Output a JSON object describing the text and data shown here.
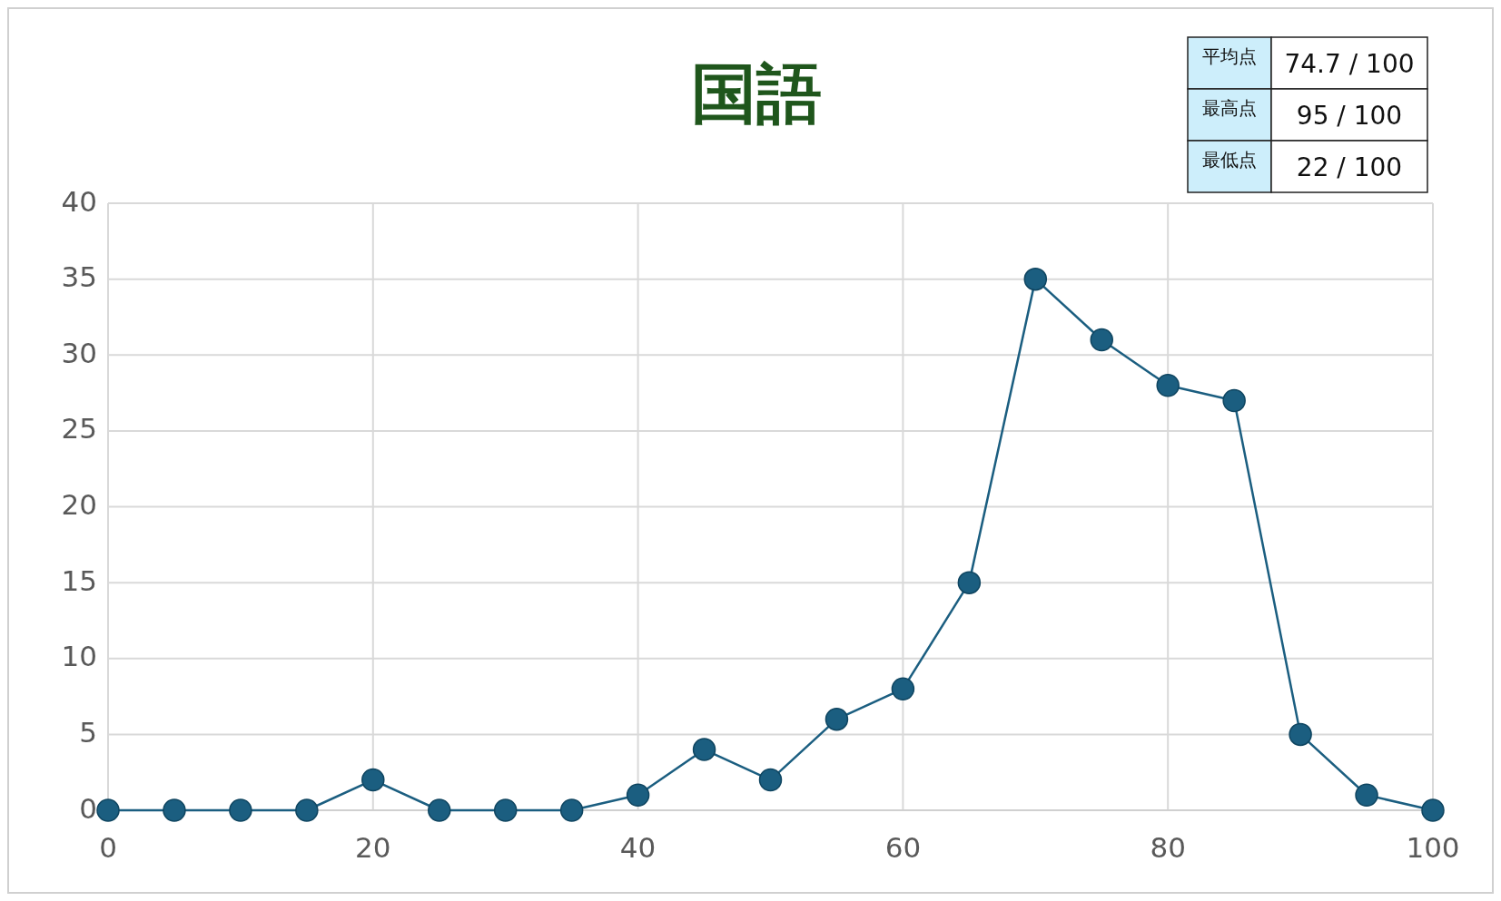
{
  "chart_data": {
    "type": "line",
    "title": "国語",
    "x": [
      0,
      5,
      10,
      15,
      20,
      25,
      30,
      35,
      40,
      45,
      50,
      55,
      60,
      65,
      70,
      75,
      80,
      85,
      90,
      95,
      100
    ],
    "series": [
      {
        "color": "#1b5e80",
        "values": [
          0,
          0,
          0,
          0,
          2,
          0,
          0,
          0,
          1,
          4,
          2,
          6,
          8,
          15,
          35,
          31,
          28,
          27,
          5,
          1,
          0
        ]
      }
    ],
    "xlim": [
      0,
      100
    ],
    "xticks": [
      0,
      20,
      40,
      60,
      80,
      100
    ],
    "ylim": [
      0,
      40
    ],
    "yticks": [
      0,
      5,
      10,
      15,
      20,
      25,
      30,
      35,
      40
    ],
    "grid": true,
    "marker": "circle",
    "line_style": "solid",
    "annotations": [
      "平均点",
      "74.7 / 100",
      "最高点",
      "95 / 100",
      "最低点",
      "22 / 100"
    ]
  }
}
